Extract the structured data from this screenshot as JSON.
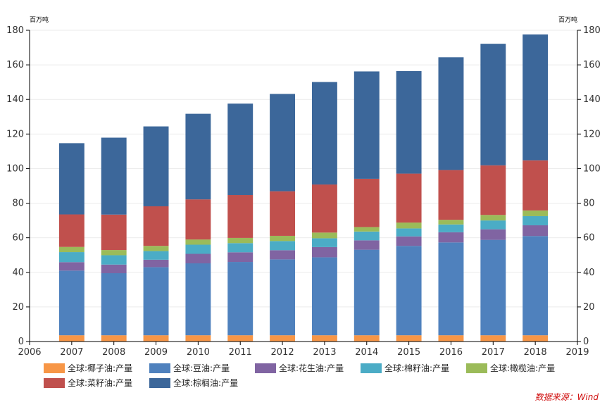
{
  "chart_data": {
    "type": "bar",
    "stacked": true,
    "unit_left": "百万吨",
    "unit_right": "百万吨",
    "x_ticks": [
      "2006",
      "2007",
      "2008",
      "2009",
      "2010",
      "2011",
      "2012",
      "2013",
      "2014",
      "2015",
      "2016",
      "2017",
      "2018",
      "2019"
    ],
    "categories": [
      "2007",
      "2008",
      "2009",
      "2010",
      "2011",
      "2012",
      "2013",
      "2014",
      "2015",
      "2016",
      "2017",
      "2018"
    ],
    "ylim": [
      0,
      180
    ],
    "y_ticks": [
      0,
      20,
      40,
      60,
      80,
      100,
      120,
      140,
      160,
      180
    ],
    "grid": false,
    "legend_position": "bottom",
    "series": [
      {
        "name": "全球:椰子油:产量",
        "color": "#f79646",
        "values": [
          3.6,
          3.6,
          3.6,
          3.6,
          3.6,
          3.6,
          3.6,
          3.6,
          3.6,
          3.6,
          3.6,
          3.6
        ]
      },
      {
        "name": "全球:豆油:产量",
        "color": "#4f81bd",
        "values": [
          37.4,
          35.9,
          39.4,
          41.6,
          42.4,
          43.9,
          45.1,
          49.5,
          51.7,
          53.7,
          55.2,
          57.4
        ]
      },
      {
        "name": "全球:花生油:产量",
        "color": "#8064a2",
        "values": [
          4.9,
          5.0,
          4.3,
          5.5,
          5.6,
          5.3,
          5.9,
          5.4,
          5.5,
          5.9,
          6.1,
          6.2
        ]
      },
      {
        "name": "全球:棉籽油:产量",
        "color": "#4bacc6",
        "values": [
          5.8,
          5.4,
          5.0,
          5.3,
          5.3,
          5.3,
          5.1,
          5.1,
          4.6,
          4.5,
          5.1,
          5.3
        ]
      },
      {
        "name": "全球:橄榄油:产量",
        "color": "#9bbb59",
        "values": [
          3.0,
          3.0,
          3.0,
          3.0,
          3.0,
          3.0,
          3.3,
          2.6,
          3.4,
          2.7,
          3.2,
          3.3
        ]
      },
      {
        "name": "全球:菜籽油:产量",
        "color": "#c0504d",
        "values": [
          18.8,
          20.5,
          22.9,
          23.2,
          24.8,
          25.8,
          27.8,
          27.9,
          28.3,
          28.8,
          28.7,
          29.0
        ]
      },
      {
        "name": "全球:棕榈油:产量",
        "color": "#3c679a",
        "values": [
          41.2,
          44.5,
          46.2,
          49.5,
          52.9,
          56.3,
          59.3,
          62.1,
          59.3,
          65.2,
          70.3,
          72.8
        ]
      }
    ]
  },
  "source": "数据来源：Wind"
}
